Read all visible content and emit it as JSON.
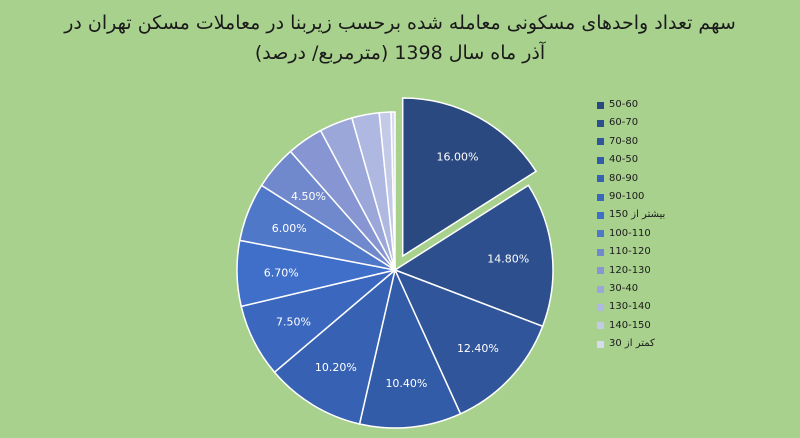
{
  "chart_data": {
    "type": "pie",
    "title_lines": [
      "سهم تعداد واحدهای مسکونی معامله شده برحسب زیربنا در معاملات مسکن تهران در",
      "آذر ماه سال 1398 (مترمربع/ درصد)"
    ],
    "legend_position": "right",
    "exploded_slice": "50-60",
    "slices": [
      {
        "label": "50-60",
        "value": 16.0,
        "value_label": "16.00%",
        "color": "#2a4980"
      },
      {
        "label": "60-70",
        "value": 14.8,
        "value_label": "14.80%",
        "color": "#2d4f8e"
      },
      {
        "label": "70-80",
        "value": 12.4,
        "value_label": "12.40%",
        "color": "#30559a"
      },
      {
        "label": "40-50",
        "value": 10.4,
        "value_label": "10.40%",
        "color": "#335ca8"
      },
      {
        "label": "80-90",
        "value": 10.2,
        "value_label": "10.20%",
        "color": "#3762b4"
      },
      {
        "label": "90-100",
        "value": 7.5,
        "value_label": "7.50%",
        "color": "#3b68be"
      },
      {
        "label": "بیشتر از 150",
        "value": 6.7,
        "value_label": "6.70%",
        "color": "#3f6fc8"
      },
      {
        "label": "100-110",
        "value": 6.0,
        "value_label": "6.00%",
        "color": "#5078c8"
      },
      {
        "label": "110-120",
        "value": 4.5,
        "value_label": "4.50%",
        "color": "#7088cc"
      },
      {
        "label": "120-130",
        "value": 3.7,
        "value_label": "",
        "color": "#8796d2"
      },
      {
        "label": "30-40",
        "value": 3.4,
        "value_label": "",
        "color": "#9ba7d9"
      },
      {
        "label": "130-140",
        "value": 2.8,
        "value_label": "",
        "color": "#afb8e0"
      },
      {
        "label": "140-150",
        "value": 1.2,
        "value_label": "",
        "color": "#c3cae8"
      },
      {
        "label": "کمتر از 30",
        "value": 0.4,
        "value_label": "",
        "color": "#d6dbf0"
      }
    ]
  }
}
